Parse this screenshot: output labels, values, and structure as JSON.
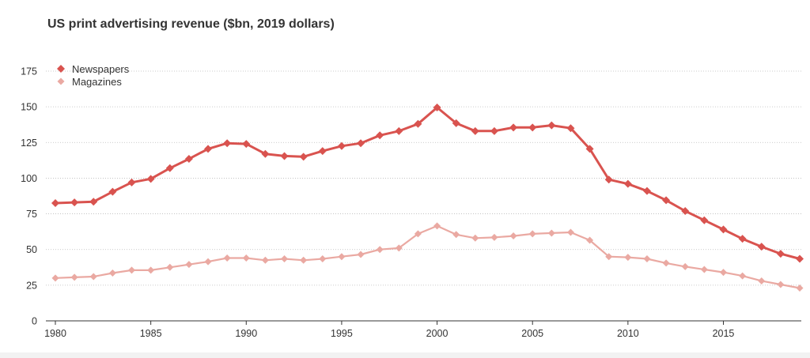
{
  "chart_data": {
    "type": "line",
    "title": "US print advertising revenue ($bn, 2019 dollars)",
    "xlabel": "",
    "ylabel": "",
    "ylim": [
      0,
      175
    ],
    "xlim": [
      1980,
      2019
    ],
    "yticks": [
      "0",
      "25",
      "50",
      "75",
      "100",
      "125",
      "150",
      "175"
    ],
    "xticks": [
      "1980",
      "1985",
      "1990",
      "1995",
      "2000",
      "2005",
      "2010",
      "2015"
    ],
    "grid": true,
    "legend_position": "top-left",
    "x": [
      1980,
      1981,
      1982,
      1983,
      1984,
      1985,
      1986,
      1987,
      1988,
      1989,
      1990,
      1991,
      1992,
      1993,
      1994,
      1995,
      1996,
      1997,
      1998,
      1999,
      2000,
      2001,
      2002,
      2003,
      2004,
      2005,
      2006,
      2007,
      2008,
      2009,
      2010,
      2011,
      2012,
      2013,
      2014,
      2015,
      2016,
      2017,
      2018,
      2019
    ],
    "series": [
      {
        "name": "Newspapers",
        "color": "#d9534f",
        "values": [
          82.5,
          83,
          83.5,
          90.5,
          97,
          99.5,
          107,
          113.5,
          120.5,
          124.5,
          124,
          117,
          115.5,
          115,
          119,
          122.5,
          124.5,
          130,
          133,
          138,
          149.5,
          138.5,
          133,
          133,
          135.5,
          135.5,
          137,
          135,
          120.5,
          99,
          96,
          91,
          84.5,
          77,
          70.5,
          64,
          57.5,
          52,
          47,
          43.5
        ]
      },
      {
        "name": "Magazines",
        "color": "#eaa9a2",
        "values": [
          30,
          30.5,
          31,
          33.5,
          35.5,
          35.5,
          37.5,
          39.5,
          41.5,
          44,
          44,
          42.5,
          43.5,
          42.5,
          43.5,
          45,
          46.5,
          50,
          51,
          61,
          66.5,
          60.5,
          58,
          58.5,
          59.5,
          61,
          61.5,
          62,
          56.5,
          45,
          44.5,
          43.5,
          40.5,
          38,
          36,
          34,
          31.5,
          28,
          25.5,
          23
        ]
      }
    ]
  }
}
